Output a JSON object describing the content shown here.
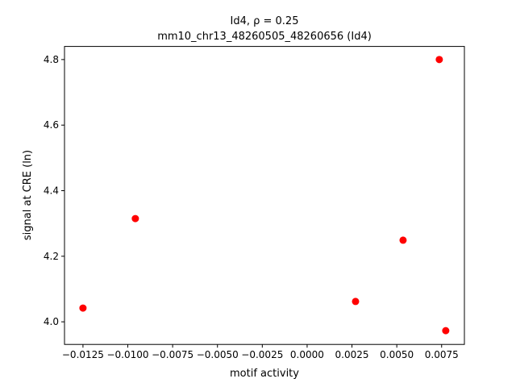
{
  "chart_data": {
    "type": "scatter",
    "title": "Id4, ρ = 0.25",
    "subtitle": "mm10_chr13_48260505_48260656 (Id4)",
    "x_label": "motif activity",
    "y_label": "signal at CRE (ln)",
    "color": "#ff0000",
    "x": [
      -0.0125,
      -0.00958,
      0.0027,
      0.00535,
      0.00737,
      0.00773
    ],
    "values": [
      4.042,
      4.315,
      4.062,
      4.249,
      4.8,
      3.973
    ],
    "xlim": [
      -0.01353,
      0.00877
    ],
    "ylim": [
      3.931,
      4.84
    ],
    "xticks": [
      {
        "value": -0.0125,
        "label": "−0.0125"
      },
      {
        "value": -0.01,
        "label": "−0.0100"
      },
      {
        "value": -0.0075,
        "label": "−0.0075"
      },
      {
        "value": -0.005,
        "label": "−0.0050"
      },
      {
        "value": -0.0025,
        "label": "−0.0025"
      },
      {
        "value": 0,
        "label": "0.0000"
      },
      {
        "value": 0.0025,
        "label": "0.0025"
      },
      {
        "value": 0.005,
        "label": "0.0050"
      },
      {
        "value": 0.0075,
        "label": "0.0075"
      }
    ],
    "yticks": [
      {
        "value": 4,
        "label": "4.0"
      },
      4.2,
      4.4,
      4.6,
      4.8
    ],
    "grid": false
  }
}
